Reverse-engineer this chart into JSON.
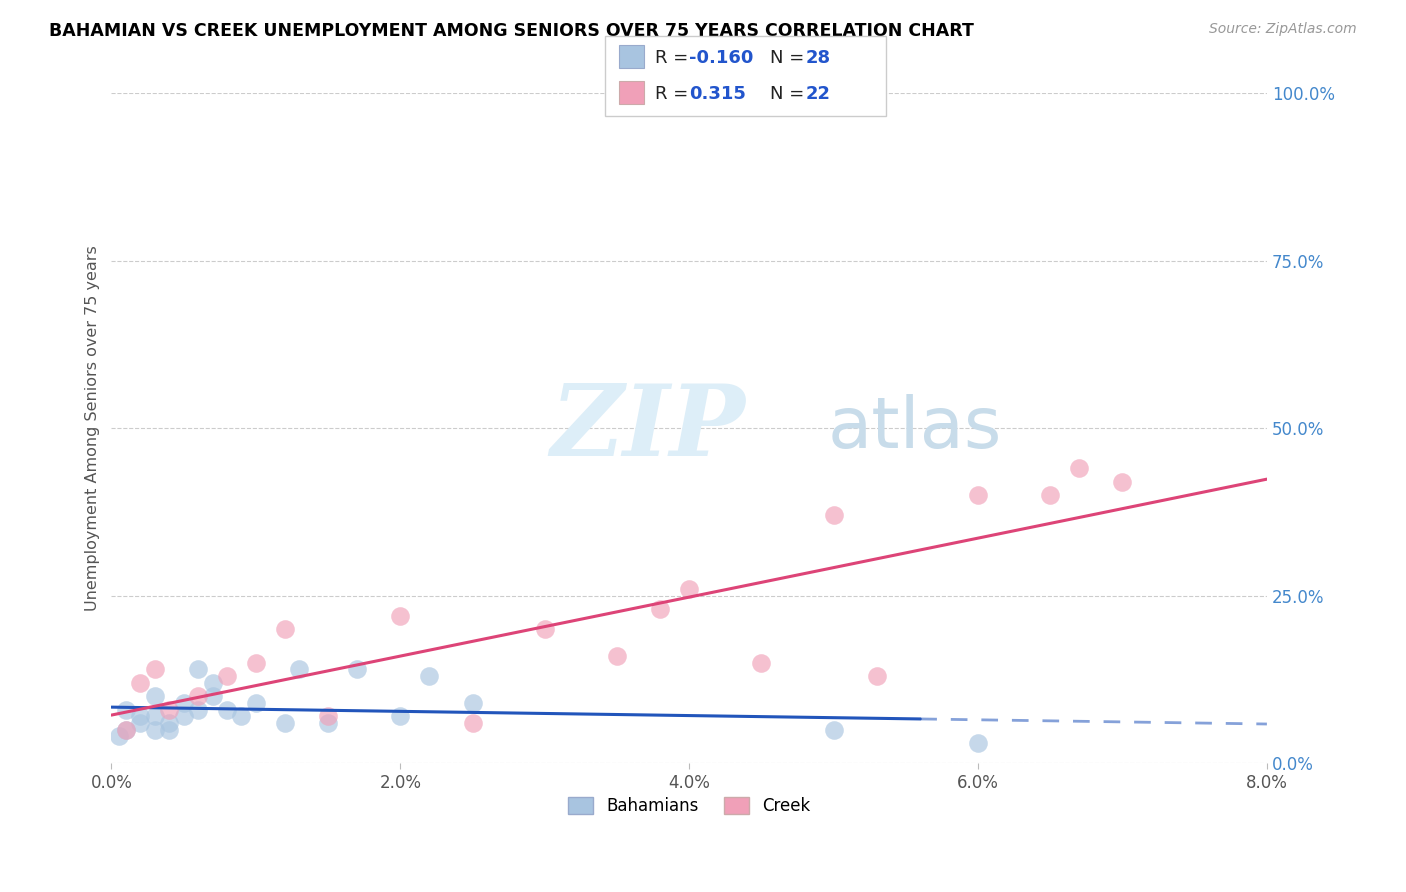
{
  "title": "BAHAMIAN VS CREEK UNEMPLOYMENT AMONG SENIORS OVER 75 YEARS CORRELATION CHART",
  "source": "Source: ZipAtlas.com",
  "ylabel": "Unemployment Among Seniors over 75 years",
  "xlim": [
    0.0,
    0.08
  ],
  "ylim": [
    0.0,
    1.0
  ],
  "xtick_labels": [
    "0.0%",
    "2.0%",
    "4.0%",
    "6.0%",
    "8.0%"
  ],
  "xtick_values": [
    0.0,
    0.02,
    0.04,
    0.06,
    0.08
  ],
  "ytick_labels": [
    "0.0%",
    "25.0%",
    "50.0%",
    "75.0%",
    "100.0%"
  ],
  "ytick_values": [
    0.0,
    0.25,
    0.5,
    0.75,
    1.0
  ],
  "bahamian_color": "#a8c4e0",
  "creek_color": "#f0a0b8",
  "bahamian_R": -0.16,
  "bahamian_N": 28,
  "creek_R": 0.315,
  "creek_N": 22,
  "bahamian_line_color": "#2255bb",
  "creek_line_color": "#dd4477",
  "bahamian_x": [
    0.0005,
    0.001,
    0.001,
    0.002,
    0.002,
    0.003,
    0.003,
    0.003,
    0.004,
    0.004,
    0.005,
    0.005,
    0.006,
    0.006,
    0.007,
    0.007,
    0.008,
    0.009,
    0.01,
    0.012,
    0.013,
    0.015,
    0.017,
    0.02,
    0.022,
    0.025,
    0.05,
    0.06
  ],
  "bahamian_y": [
    0.04,
    0.05,
    0.08,
    0.06,
    0.07,
    0.07,
    0.05,
    0.1,
    0.06,
    0.05,
    0.09,
    0.07,
    0.08,
    0.14,
    0.12,
    0.1,
    0.08,
    0.07,
    0.09,
    0.06,
    0.14,
    0.06,
    0.14,
    0.07,
    0.13,
    0.09,
    0.05,
    0.03
  ],
  "creek_x": [
    0.001,
    0.002,
    0.003,
    0.004,
    0.006,
    0.008,
    0.01,
    0.012,
    0.015,
    0.02,
    0.025,
    0.03,
    0.035,
    0.038,
    0.04,
    0.045,
    0.05,
    0.053,
    0.06,
    0.065,
    0.067,
    0.07
  ],
  "creek_y": [
    0.05,
    0.12,
    0.14,
    0.08,
    0.1,
    0.13,
    0.15,
    0.2,
    0.07,
    0.22,
    0.06,
    0.2,
    0.16,
    0.23,
    0.26,
    0.15,
    0.37,
    0.13,
    0.4,
    0.4,
    0.44,
    0.42
  ]
}
